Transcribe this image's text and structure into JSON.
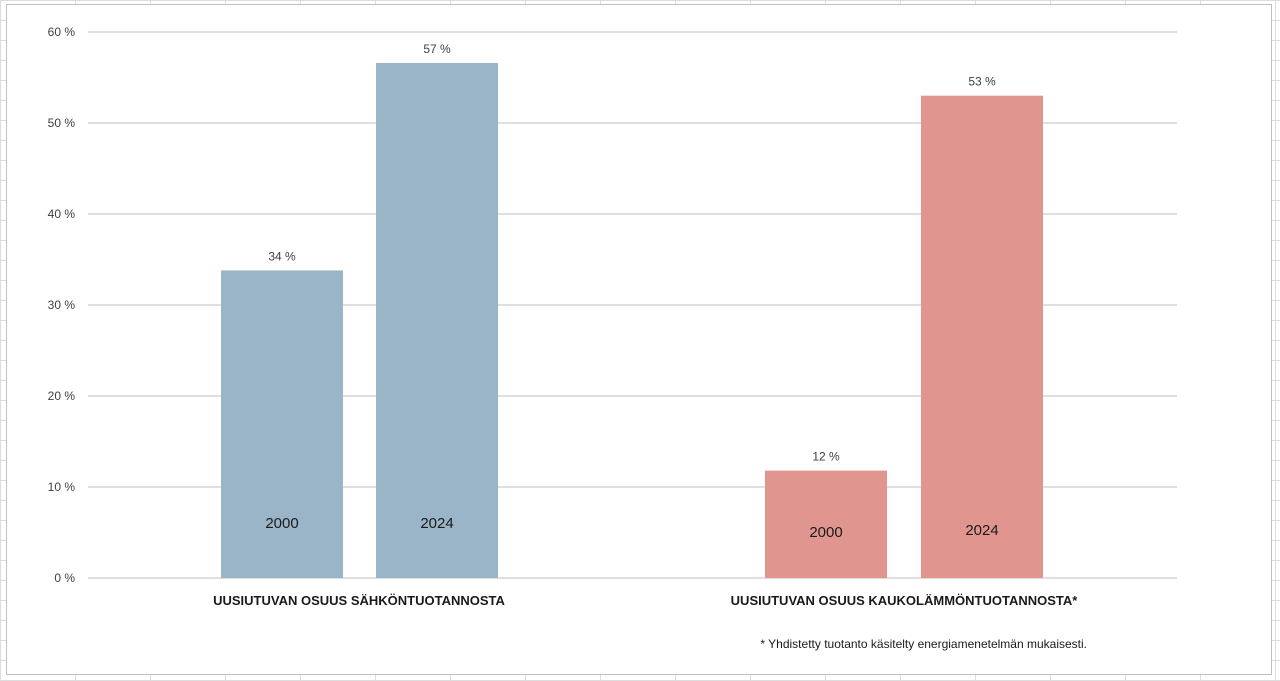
{
  "chart_data": {
    "type": "bar",
    "ylim": [
      0,
      60
    ],
    "yticks": [
      0,
      10,
      20,
      30,
      40,
      50,
      60
    ],
    "ytick_labels": [
      "0 %",
      "10 %",
      "20 %",
      "30 %",
      "40 %",
      "50 %",
      "60 %"
    ],
    "grid": true,
    "legend": "none",
    "groups": [
      {
        "category": "UUSIUTUVAN OSUUS SÄHKÖNTUOTANNOSTA",
        "color": "#9ab5c8",
        "bars": [
          {
            "year": "2000",
            "value": 33.8,
            "label": "34 %"
          },
          {
            "year": "2024",
            "value": 56.6,
            "label": "57 %"
          }
        ]
      },
      {
        "category": "UUSIUTUVAN OSUUS KAUKOLÄMMÖNTUOTANNOSTA*",
        "color": "#e0968f",
        "bars": [
          {
            "year": "2000",
            "value": 11.8,
            "label": "12 %"
          },
          {
            "year": "2024",
            "value": 53.0,
            "label": "53 %"
          }
        ]
      }
    ],
    "footnote": "* Yhdistetty tuotanto käsitelty energiamenetelmän mukaisesti."
  }
}
